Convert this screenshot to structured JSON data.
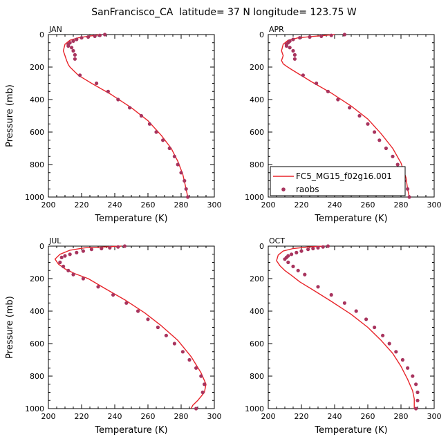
{
  "title": "SanFrancisco_CA  latitude= 37 N longitude= 123.75 W",
  "colors": {
    "model": "#e8242a",
    "raobs": "#a8345e"
  },
  "legend": {
    "model_label": "FC5_MG15_f02g16.001",
    "raobs_label": "raobs",
    "placement": "lower-left of APR panel"
  },
  "chart_data": [
    {
      "type": "line",
      "panel": "JAN",
      "xlabel": "Temperature (K)",
      "ylabel": "Pressure (mb)",
      "xlim": [
        200,
        300
      ],
      "ylim": [
        1000,
        0
      ],
      "xticks": [
        200,
        220,
        240,
        260,
        280,
        300
      ],
      "yticks": [
        0,
        200,
        400,
        600,
        800,
        1000
      ],
      "series": [
        {
          "name": "FC5_MG15_f02g16.001",
          "style": "line",
          "x": [
            232,
            224,
            218,
            213,
            210,
            209,
            210,
            211,
            212,
            213,
            215,
            218,
            226,
            238,
            250,
            260,
            268,
            274,
            278,
            281,
            283,
            284
          ],
          "y": [
            0,
            10,
            20,
            35,
            60,
            100,
            130,
            160,
            185,
            200,
            220,
            250,
            300,
            370,
            450,
            530,
            620,
            700,
            780,
            860,
            950,
            1000
          ]
        },
        {
          "name": "raobs",
          "style": "markers",
          "x": [
            234,
            231,
            228,
            224,
            220,
            217,
            215,
            213,
            212,
            212,
            214,
            215,
            216,
            216,
            219,
            229,
            236,
            242,
            249,
            256,
            261,
            265,
            269,
            273,
            276,
            278,
            280,
            282,
            283,
            284
          ],
          "y": [
            0,
            5,
            10,
            15,
            20,
            30,
            40,
            50,
            60,
            70,
            80,
            100,
            125,
            150,
            250,
            300,
            350,
            400,
            450,
            500,
            550,
            600,
            650,
            700,
            750,
            800,
            850,
            900,
            950,
            1000
          ]
        }
      ]
    },
    {
      "type": "line",
      "panel": "APR",
      "xlabel": "Temperature (K)",
      "ylabel": "",
      "xlim": [
        200,
        300
      ],
      "ylim": [
        1000,
        0
      ],
      "xticks": [
        200,
        220,
        240,
        260,
        280,
        300
      ],
      "yticks": [
        0,
        200,
        400,
        600,
        800,
        1000
      ],
      "series": [
        {
          "name": "FC5_MG15_f02g16.001",
          "style": "line",
          "x": [
            240,
            228,
            218,
            212,
            209,
            208,
            209,
            208,
            209,
            211,
            214,
            218,
            226,
            238,
            250,
            260,
            268,
            275,
            280,
            283,
            284,
            285
          ],
          "y": [
            0,
            10,
            20,
            35,
            60,
            100,
            130,
            160,
            180,
            195,
            215,
            240,
            290,
            360,
            440,
            520,
            610,
            700,
            790,
            880,
            950,
            1000
          ]
        },
        {
          "name": "raobs",
          "style": "markers",
          "x": [
            246,
            238,
            232,
            225,
            219,
            215,
            213,
            212,
            211,
            211,
            213,
            215,
            216,
            216,
            221,
            229,
            236,
            242,
            249,
            255,
            260,
            264,
            267,
            271,
            275,
            278,
            280,
            282,
            284,
            285
          ],
          "y": [
            0,
            5,
            10,
            15,
            20,
            30,
            40,
            50,
            60,
            70,
            80,
            100,
            125,
            150,
            250,
            300,
            350,
            400,
            450,
            500,
            550,
            600,
            650,
            700,
            750,
            800,
            850,
            900,
            950,
            1000
          ]
        }
      ]
    },
    {
      "type": "line",
      "panel": "JUL",
      "xlabel": "Temperature (K)",
      "ylabel": "Pressure (mb)",
      "xlim": [
        200,
        300
      ],
      "ylim": [
        1000,
        0
      ],
      "xticks": [
        200,
        220,
        240,
        260,
        280,
        300
      ],
      "yticks": [
        0,
        200,
        400,
        600,
        800,
        1000
      ],
      "series": [
        {
          "name": "FC5_MG15_f02g16.001",
          "style": "line",
          "x": [
            244,
            234,
            222,
            213,
            207,
            204,
            206,
            210,
            216,
            224,
            234,
            246,
            258,
            268,
            278,
            286,
            292,
            295,
            294,
            290,
            287,
            286
          ],
          "y": [
            0,
            5,
            10,
            25,
            50,
            80,
            110,
            140,
            170,
            200,
            260,
            330,
            410,
            490,
            580,
            680,
            780,
            850,
            900,
            950,
            980,
            1000
          ]
        },
        {
          "name": "raobs",
          "style": "markers",
          "x": [
            246,
            242,
            237,
            232,
            226,
            221,
            217,
            213,
            210,
            208,
            207,
            209,
            212,
            215,
            221,
            230,
            239,
            247,
            254,
            260,
            266,
            271,
            276,
            281,
            285,
            289,
            292,
            294,
            293,
            289
          ],
          "y": [
            0,
            5,
            10,
            15,
            20,
            30,
            40,
            50,
            60,
            70,
            100,
            125,
            150,
            175,
            200,
            250,
            300,
            350,
            400,
            450,
            500,
            550,
            600,
            650,
            700,
            750,
            800,
            850,
            900,
            1000
          ]
        }
      ]
    },
    {
      "type": "line",
      "panel": "OCT",
      "xlabel": "Temperature (K)",
      "ylabel": "",
      "xlim": [
        200,
        300
      ],
      "ylim": [
        1000,
        0
      ],
      "xticks": [
        200,
        220,
        240,
        260,
        280,
        300
      ],
      "yticks": [
        0,
        200,
        400,
        600,
        800,
        1000
      ],
      "series": [
        {
          "name": "FC5_MG15_f02g16.001",
          "style": "line",
          "x": [
            234,
            224,
            215,
            209,
            206,
            205,
            207,
            210,
            214,
            219,
            227,
            238,
            250,
            260,
            268,
            275,
            280,
            284,
            287,
            288,
            288,
            288
          ],
          "y": [
            0,
            5,
            15,
            30,
            55,
            90,
            120,
            150,
            180,
            220,
            270,
            340,
            420,
            500,
            580,
            660,
            740,
            820,
            890,
            940,
            980,
            1000
          ]
        },
        {
          "name": "raobs",
          "style": "markers",
          "x": [
            236,
            233,
            230,
            227,
            224,
            220,
            217,
            214,
            212,
            211,
            210,
            212,
            215,
            218,
            222,
            230,
            238,
            246,
            253,
            259,
            264,
            269,
            273,
            277,
            281,
            284,
            287,
            289,
            290,
            290,
            289
          ],
          "y": [
            0,
            5,
            10,
            15,
            20,
            30,
            40,
            50,
            60,
            70,
            80,
            100,
            125,
            150,
            175,
            250,
            300,
            350,
            400,
            450,
            500,
            550,
            600,
            650,
            700,
            750,
            800,
            850,
            900,
            950,
            1000
          ]
        }
      ]
    }
  ]
}
